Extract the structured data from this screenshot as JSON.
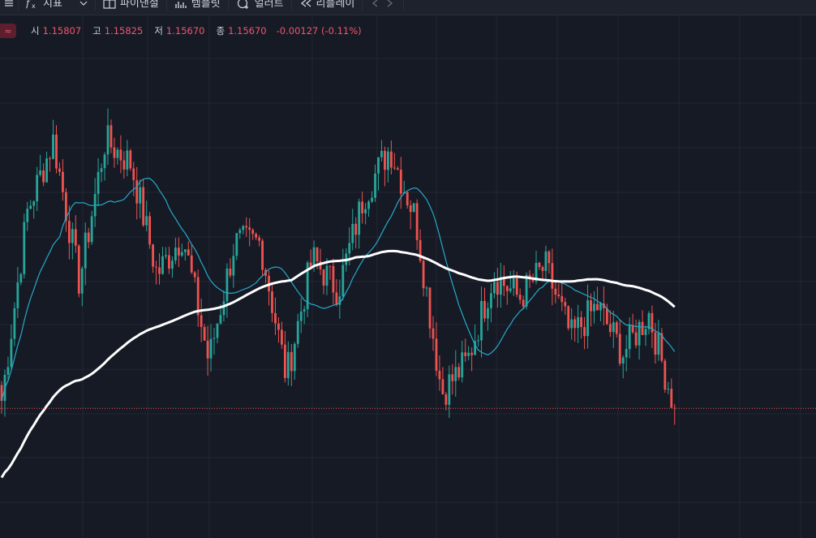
{
  "toolbar": {
    "items": [
      {
        "icon": "menu-icon",
        "label": ""
      },
      {
        "icon": "fx-icon",
        "label": "지표",
        "has_dropdown": true
      },
      {
        "icon": "layout-icon",
        "label": "파이낸셜"
      },
      {
        "icon": "template-icon",
        "label": "템플릿"
      },
      {
        "icon": "alert-icon",
        "label": "얼러트"
      },
      {
        "icon": "replay-icon",
        "label": "리플레이"
      },
      {
        "icon": "undo-redo-icon",
        "label": ""
      }
    ]
  },
  "legend": {
    "symbol_icon": "wave-icon",
    "open_label": "시",
    "open_value": "1.15807",
    "high_label": "고",
    "high_value": "1.15825",
    "low_label": "저",
    "low_value": "1.15670",
    "close_label": "종",
    "close_value": "1.15670",
    "change": "-0.00127 (-0.11%)"
  },
  "colors": {
    "background": "#161a25",
    "grid": "#232733",
    "up": "#26a69a",
    "down": "#ef5350",
    "ma_short": "#26a9c9",
    "ma_long": "#ffffff",
    "last_price_line": "#ef5350"
  },
  "chart_data": {
    "type": "candlestick",
    "overlays": [
      "moving average (cyan)",
      "moving average (white)"
    ],
    "close_path": [
      1.1568,
      1.1592,
      1.1601,
      1.1583,
      1.1601,
      1.1598,
      1.1584,
      1.1589,
      1.1573,
      1.1588,
      1.1588,
      1.1571,
      1.1586,
      1.1582,
      1.1594,
      1.16,
      1.1591,
      1.1569,
      1.1573,
      1.1584,
      1.1581,
      1.1585,
      1.1576,
      1.158,
      1.1574,
      1.1579,
      1.1567
    ],
    "last_close": 1.1567
  }
}
